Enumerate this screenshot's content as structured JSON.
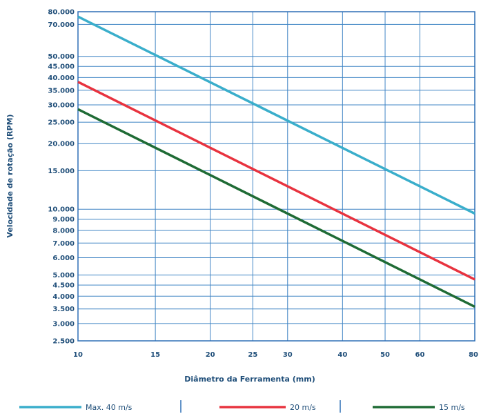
{
  "chart_data": {
    "type": "line",
    "xlabel": "Diâmetro da Ferramenta (mm)",
    "ylabel": "Velocidade de rotação (RPM)",
    "xscale": "log",
    "yscale": "log",
    "xlim": [
      10,
      80
    ],
    "ylim": [
      2500,
      80000
    ],
    "grid": true,
    "legend_position": "bottom",
    "x_ticks": [
      {
        "value": 10,
        "label": "10"
      },
      {
        "value": 15,
        "label": "15"
      },
      {
        "value": 20,
        "label": "20"
      },
      {
        "value": 25,
        "label": "25"
      },
      {
        "value": 30,
        "label": "30"
      },
      {
        "value": 40,
        "label": "40"
      },
      {
        "value": 50,
        "label": "50"
      },
      {
        "value": 60,
        "label": "60"
      },
      {
        "value": 80,
        "label": "80"
      }
    ],
    "y_ticks": [
      {
        "value": 80000,
        "label": "80.000"
      },
      {
        "value": 70000,
        "label": "70.000"
      },
      {
        "value": 50000,
        "label": "50.000"
      },
      {
        "value": 45000,
        "label": "45.000"
      },
      {
        "value": 40000,
        "label": "40.000"
      },
      {
        "value": 35000,
        "label": "35.000"
      },
      {
        "value": 30000,
        "label": "30.000"
      },
      {
        "value": 25000,
        "label": "25.000"
      },
      {
        "value": 20000,
        "label": "20.000"
      },
      {
        "value": 15000,
        "label": "15.000"
      },
      {
        "value": 10000,
        "label": "10.000"
      },
      {
        "value": 9000,
        "label": "9.000"
      },
      {
        "value": 8000,
        "label": "8.000"
      },
      {
        "value": 7000,
        "label": "7.000"
      },
      {
        "value": 6000,
        "label": "6.000"
      },
      {
        "value": 5000,
        "label": "5.000"
      },
      {
        "value": 4500,
        "label": "4.500"
      },
      {
        "value": 4000,
        "label": "4.000"
      },
      {
        "value": 3500,
        "label": "3.500"
      },
      {
        "value": 3000,
        "label": "3.000"
      },
      {
        "value": 2500,
        "label": "2.500"
      }
    ],
    "series": [
      {
        "name": "Max. 40 m/s",
        "color": "#3aaecb",
        "x": [
          10,
          80
        ],
        "y": [
          76000,
          9550
        ]
      },
      {
        "name": "20 m/s",
        "color": "#e8333f",
        "x": [
          10,
          80
        ],
        "y": [
          38200,
          4770
        ]
      },
      {
        "name": "15 m/s",
        "color": "#1f6b35",
        "x": [
          10,
          80
        ],
        "y": [
          28650,
          3580
        ]
      }
    ]
  },
  "colors": {
    "grid": "#3f84c4",
    "frame": "#2e6fb5",
    "text": "#1f4e79"
  }
}
